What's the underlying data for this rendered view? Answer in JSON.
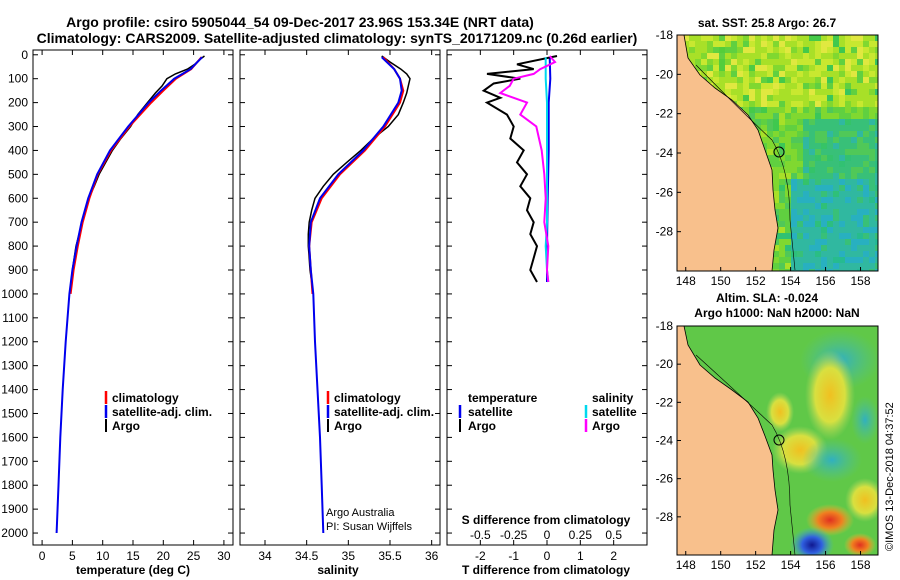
{
  "header": {
    "title_line1": "Argo profile: csiro 5905044_54 09-Dec-2017 23.96S 153.34E (NRT data)",
    "title_line2": "Climatology: CARS2009. Satellite-adjusted climatology: synTS_20171209.nc (0.26d earlier)"
  },
  "colors": {
    "argo": "#000000",
    "climatology": "#ff0000",
    "satellite": "#0000ee",
    "s_sat": "#00d8ee",
    "s_argo": "#ff00ff",
    "land": "#f8c08c"
  },
  "depth_axis": {
    "ylim": [
      2050,
      -20
    ],
    "ticks": [
      "0",
      "100",
      "200",
      "300",
      "400",
      "500",
      "600",
      "700",
      "800",
      "900",
      "1000",
      "1100",
      "1200",
      "1300",
      "1400",
      "1500",
      "1600",
      "1700",
      "1800",
      "1900",
      "2000"
    ]
  },
  "chart_data": [
    {
      "type": "line",
      "name": "temperature",
      "xlabel": "temperature (deg C)",
      "xlim": [
        -1.5,
        31.5
      ],
      "xticks": [
        "0",
        "5",
        "10",
        "15",
        "20",
        "25",
        "30"
      ],
      "legend": [
        "climatology",
        "satellite-adj. clim.",
        "Argo"
      ],
      "series": [
        {
          "name": "climatology",
          "depth": [
            10,
            60,
            100,
            150,
            200,
            300,
            400,
            500,
            600,
            700,
            800,
            900,
            1000
          ],
          "values": [
            26.3,
            24.6,
            22.1,
            20.0,
            18.0,
            14.4,
            11.4,
            9.2,
            7.8,
            6.7,
            5.9,
            5.2,
            4.7
          ]
        },
        {
          "name": "satellite-adj. clim.",
          "depth": [
            10,
            60,
            100,
            150,
            200,
            300,
            400,
            500,
            600,
            700,
            800,
            900,
            1000,
            1200,
            1400,
            1600,
            1800,
            2000
          ],
          "values": [
            26.4,
            24.5,
            21.8,
            19.6,
            17.6,
            14.2,
            11.2,
            9.1,
            7.6,
            6.5,
            5.7,
            5.0,
            4.5,
            3.9,
            3.4,
            3.0,
            2.7,
            2.4
          ]
        },
        {
          "name": "Argo",
          "depth": [
            5,
            20,
            40,
            60,
            80,
            100,
            130,
            160,
            200,
            250,
            300,
            350,
            400,
            450,
            500,
            550,
            600,
            650,
            700,
            750,
            800,
            850,
            900,
            950,
            980
          ],
          "values": [
            26.8,
            26.0,
            25.2,
            24.0,
            22.0,
            20.6,
            19.8,
            18.7,
            17.4,
            15.8,
            14.6,
            13.0,
            11.6,
            10.5,
            9.4,
            8.6,
            7.7,
            7.2,
            6.6,
            6.1,
            5.6,
            5.3,
            5.0,
            4.8,
            4.7
          ]
        }
      ]
    },
    {
      "type": "line",
      "name": "salinity",
      "xlabel": "salinity",
      "xlim": [
        33.7,
        36.1
      ],
      "xticks": [
        "34",
        "34.5",
        "35",
        "35.5",
        "36"
      ],
      "legend": [
        "climatology",
        "satellite-adj. clim.",
        "Argo"
      ],
      "series": [
        {
          "name": "climatology",
          "depth": [
            10,
            60,
            100,
            150,
            200,
            300,
            400,
            500,
            600,
            700,
            800,
            900,
            1000
          ],
          "values": [
            35.42,
            35.55,
            35.62,
            35.66,
            35.62,
            35.44,
            35.2,
            34.9,
            34.68,
            34.56,
            34.53,
            34.55,
            34.57
          ]
        },
        {
          "name": "satellite-adj. clim.",
          "depth": [
            10,
            60,
            100,
            150,
            200,
            300,
            400,
            500,
            600,
            700,
            800,
            900,
            1000,
            1200,
            1400,
            1600,
            1800,
            2000
          ],
          "values": [
            35.4,
            35.55,
            35.62,
            35.64,
            35.6,
            35.42,
            35.18,
            34.88,
            34.66,
            34.55,
            34.53,
            34.55,
            34.58,
            34.6,
            34.63,
            34.66,
            34.68,
            34.7
          ]
        },
        {
          "name": "Argo",
          "depth": [
            5,
            30,
            60,
            80,
            100,
            130,
            160,
            200,
            250,
            300,
            350,
            400,
            450,
            500,
            550,
            600,
            650,
            700,
            750,
            800,
            850,
            900,
            950,
            980
          ],
          "values": [
            35.4,
            35.5,
            35.63,
            35.7,
            35.74,
            35.72,
            35.7,
            35.66,
            35.6,
            35.48,
            35.3,
            35.15,
            34.98,
            34.82,
            34.7,
            34.6,
            34.56,
            34.53,
            34.52,
            34.52,
            34.53,
            34.54,
            34.56,
            34.57
          ]
        }
      ]
    },
    {
      "type": "line",
      "name": "difference",
      "xlabel": "T difference from climatology",
      "xlabel_top": "S difference from climatology",
      "xlim": [
        -3,
        3
      ],
      "xticks": [
        "-2",
        "-1",
        "0",
        "1",
        "2"
      ],
      "xticks_s": [
        "-0.5",
        "-0.25",
        "0",
        "0.25",
        "0.5"
      ],
      "legend_temperature_title": "temperature",
      "legend_salinity_title": "salinity",
      "legend_temperature": [
        "satellite",
        "Argo"
      ],
      "legend_salinity": [
        "satellite",
        "Argo"
      ],
      "series": [
        {
          "name": "T satellite",
          "depth": [
            10,
            100,
            200,
            400,
            600,
            800,
            950
          ],
          "values": [
            0.08,
            0.1,
            0.05,
            0.05,
            0.02,
            0.0,
            0.0
          ]
        },
        {
          "name": "T Argo",
          "depth": [
            5,
            40,
            60,
            80,
            100,
            120,
            150,
            180,
            200,
            250,
            300,
            350,
            400,
            450,
            500,
            550,
            600,
            650,
            700,
            750,
            800,
            850,
            900,
            950
          ],
          "values": [
            0.3,
            -0.9,
            -0.4,
            -1.8,
            -0.8,
            -1.6,
            -1.9,
            -1.4,
            -1.8,
            -1.2,
            -1.0,
            -1.1,
            -0.7,
            -0.9,
            -0.6,
            -0.8,
            -0.5,
            -0.6,
            -0.4,
            -0.5,
            -0.3,
            -0.4,
            -0.5,
            -0.3
          ]
        },
        {
          "name": "S satellite",
          "depth": [
            10,
            100,
            200,
            300,
            400,
            500,
            600,
            700,
            800,
            900,
            950
          ],
          "values": [
            -0.01,
            -0.01,
            0.0,
            0.0,
            0.0,
            0.0,
            0.0,
            0.0,
            -0.01,
            0.0,
            0.01
          ]
        },
        {
          "name": "S Argo",
          "depth": [
            5,
            30,
            60,
            80,
            100,
            130,
            160,
            200,
            250,
            300,
            350,
            400,
            450,
            500,
            600,
            700,
            800,
            900,
            950
          ],
          "values": [
            0.02,
            0.06,
            -0.05,
            -0.1,
            -0.25,
            -0.28,
            -0.35,
            -0.15,
            -0.2,
            -0.08,
            -0.06,
            -0.04,
            -0.03,
            -0.02,
            -0.01,
            -0.02,
            0.01,
            0.0,
            0.01
          ]
        }
      ]
    },
    {
      "type": "heatmap",
      "name": "sst-map",
      "title": "sat. SST: 25.8 Argo: 26.7",
      "xlim": [
        147.5,
        159
      ],
      "ylim": [
        -30,
        -18
      ],
      "xticks": [
        "148",
        "150",
        "152",
        "154",
        "156",
        "158"
      ],
      "yticks": [
        "-18",
        "-20",
        "-22",
        "-24",
        "-26",
        "-28"
      ],
      "float_position": [
        153.34,
        -23.96
      ]
    },
    {
      "type": "heatmap",
      "name": "sla-map",
      "title_line1": "Altim. SLA: -0.024",
      "title_line2": "Argo h1000: NaN h2000: NaN",
      "xlim": [
        147.5,
        159
      ],
      "ylim": [
        -30,
        -18
      ],
      "xticks": [
        "148",
        "150",
        "152",
        "154",
        "156",
        "158"
      ],
      "yticks": [
        "-18",
        "-20",
        "-22",
        "-24",
        "-26",
        "-28"
      ],
      "float_position": [
        153.34,
        -23.96
      ]
    }
  ],
  "annotations": {
    "credit_line1": "Argo Australia",
    "credit_line2": "PI: Susan Wijffels",
    "stamp": "©IMOS 13-Dec-2018 04:37:52"
  }
}
